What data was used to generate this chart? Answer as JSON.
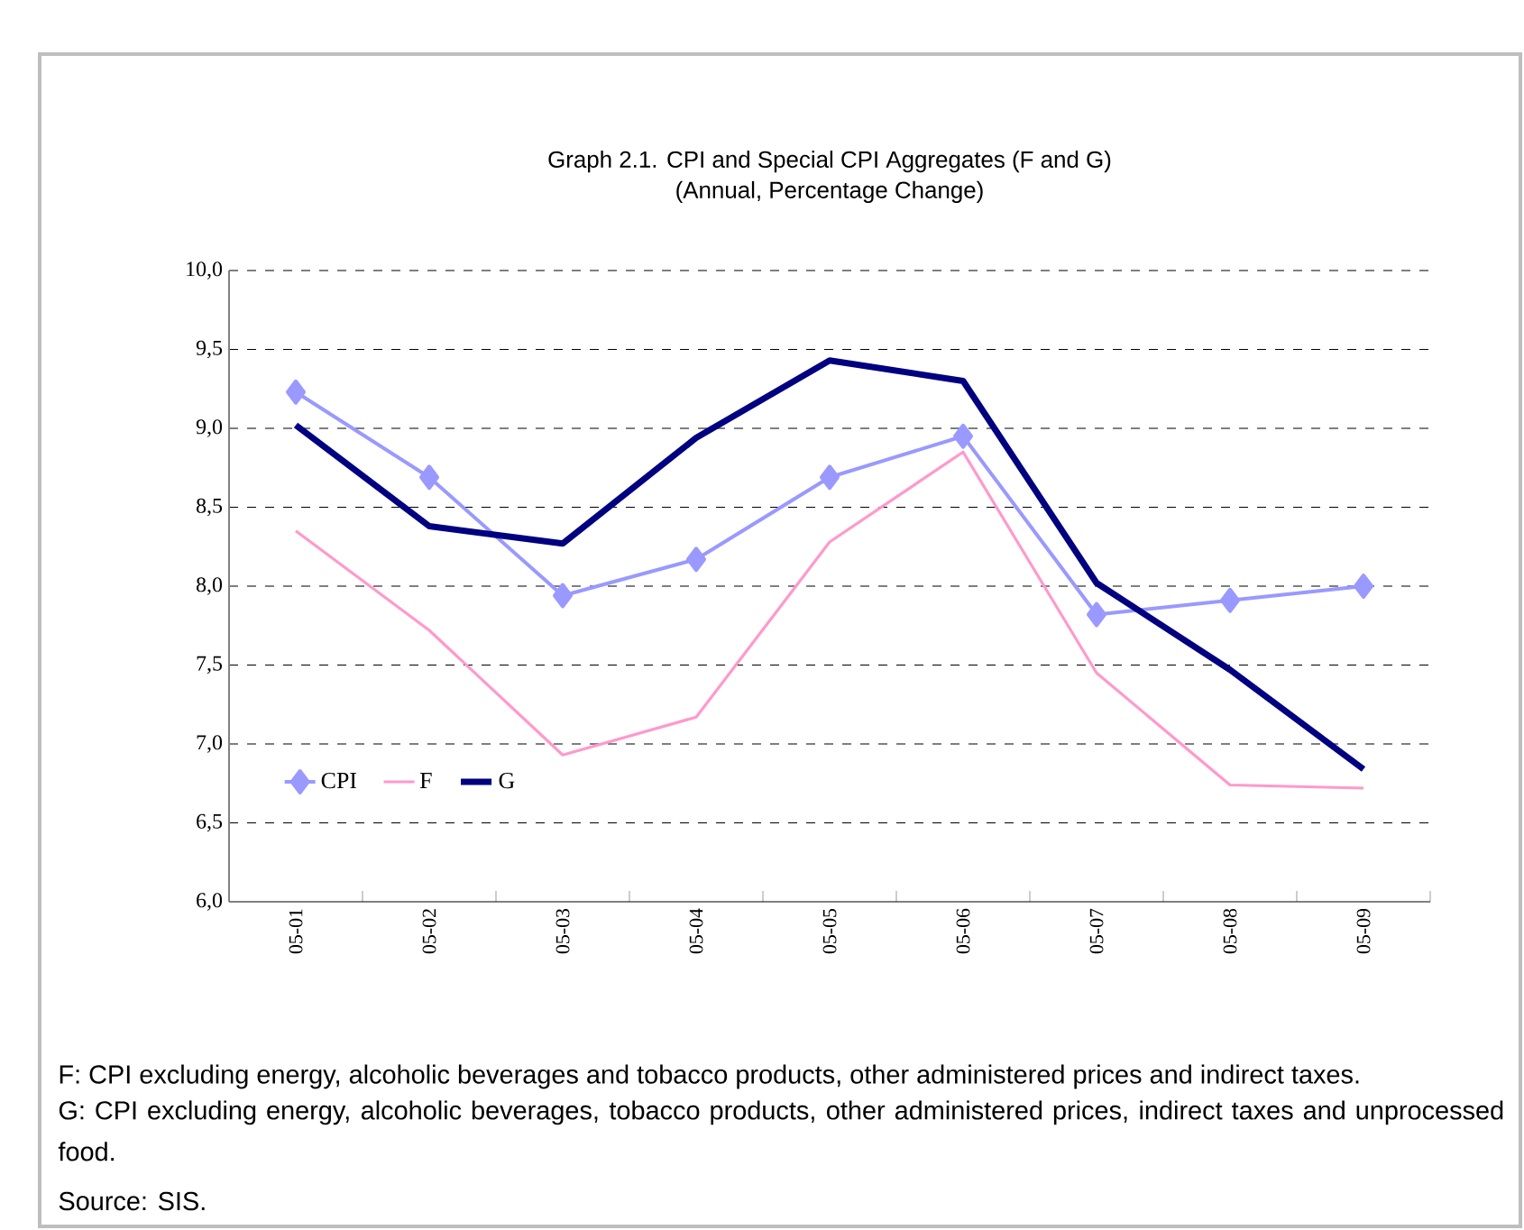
{
  "chart_data": {
    "type": "line",
    "title": "Graph 2.1. CPI and Special CPI Aggregates (F and G)",
    "subtitle": "(Annual, Percentage Change)",
    "categories": [
      "05-01",
      "05-02",
      "05-03",
      "05-04",
      "05-05",
      "05-06",
      "05-07",
      "05-08",
      "05-09"
    ],
    "series": [
      {
        "name": "CPI",
        "color": "#9999ff",
        "marker": "diamond",
        "values": [
          9.23,
          8.69,
          7.94,
          8.17,
          8.69,
          8.95,
          7.82,
          7.91,
          8.0
        ]
      },
      {
        "name": "F",
        "color": "#ff99cc",
        "marker": "none",
        "values": [
          8.35,
          7.72,
          6.93,
          7.17,
          8.28,
          8.85,
          7.45,
          6.74,
          6.72
        ]
      },
      {
        "name": "G",
        "color": "#000080",
        "marker": "none",
        "values": [
          9.02,
          8.38,
          8.27,
          8.94,
          9.43,
          9.3,
          8.02,
          7.47,
          6.84
        ]
      }
    ],
    "ylim": [
      6,
      10
    ],
    "yticks": [
      {
        "value": 6,
        "label": "6,0"
      },
      {
        "value": 6.5,
        "label": "6,5"
      },
      {
        "value": 7,
        "label": "7,0"
      },
      {
        "value": 7.5,
        "label": "7,5"
      },
      {
        "value": 8,
        "label": "8,0"
      },
      {
        "value": 8.5,
        "label": "8,5"
      },
      {
        "value": 9,
        "label": "9,0"
      },
      {
        "value": 9.5,
        "label": "9,5"
      },
      {
        "value": 10,
        "label": "10,0"
      }
    ],
    "grid": "y",
    "legend": "bottom left",
    "annotations": [
      "F: CPI excluding energy, alcoholic beverages and tobacco products, other administered prices and indirect taxes.",
      "G: CPI excluding energy, alcoholic beverages, tobacco products, other administered prices, indirect taxes and unprocessed food.",
      "Source: SIS."
    ]
  }
}
